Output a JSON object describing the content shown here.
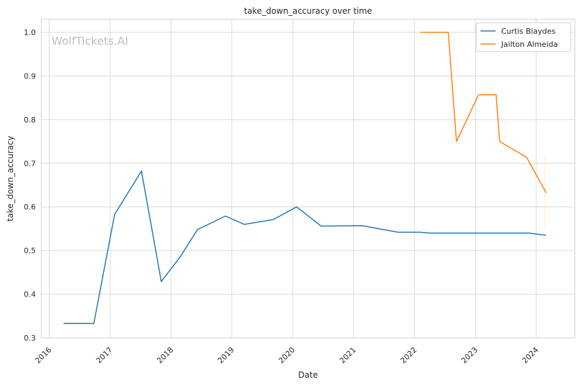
{
  "chart_data": {
    "type": "line",
    "title": "take_down_accuracy over time",
    "xlabel": "Date",
    "ylabel": "take_down_accuracy",
    "watermark": "WolfTickets.AI",
    "xlim": [
      "2015-11-15",
      "2024-08-20"
    ],
    "ylim": [
      0.3,
      1.03
    ],
    "x_ticks": [
      "2016",
      "2017",
      "2018",
      "2019",
      "2020",
      "2021",
      "2022",
      "2023",
      "2024"
    ],
    "y_ticks": [
      "0.3",
      "0.4",
      "0.5",
      "0.6",
      "0.7",
      "0.8",
      "0.9",
      "1.0"
    ],
    "grid": true,
    "legend_position": "top-right",
    "series": [
      {
        "name": "Curtis Blaydes",
        "color": "#1f77b4",
        "points": [
          [
            "2016-03-27",
            0.333
          ],
          [
            "2016-09-25",
            0.333
          ],
          [
            "2017-01-28",
            0.583
          ],
          [
            "2017-07-08",
            0.682
          ],
          [
            "2017-11-04",
            0.429
          ],
          [
            "2018-02-24",
            0.485
          ],
          [
            "2018-06-09",
            0.548
          ],
          [
            "2018-11-24",
            0.579
          ],
          [
            "2019-03-16",
            0.56
          ],
          [
            "2019-09-07",
            0.571
          ],
          [
            "2020-01-25",
            0.6
          ],
          [
            "2020-06-20",
            0.556
          ],
          [
            "2021-02-20",
            0.557
          ],
          [
            "2021-09-25",
            0.542
          ],
          [
            "2022-02-05",
            0.542
          ],
          [
            "2022-04-02",
            0.54
          ],
          [
            "2023-02-04",
            0.54
          ],
          [
            "2023-11-18",
            0.54
          ],
          [
            "2024-03-01",
            0.535
          ]
        ]
      },
      {
        "name": "Jailton Almeida",
        "color": "#ff7f0e",
        "points": [
          [
            "2022-02-05",
            1.0
          ],
          [
            "2022-07-23",
            1.0
          ],
          [
            "2022-09-10",
            0.75
          ],
          [
            "2023-01-21",
            0.857
          ],
          [
            "2023-05-06",
            0.857
          ],
          [
            "2023-05-27",
            0.75
          ],
          [
            "2023-11-04",
            0.714
          ],
          [
            "2024-03-01",
            0.632
          ]
        ]
      }
    ]
  }
}
